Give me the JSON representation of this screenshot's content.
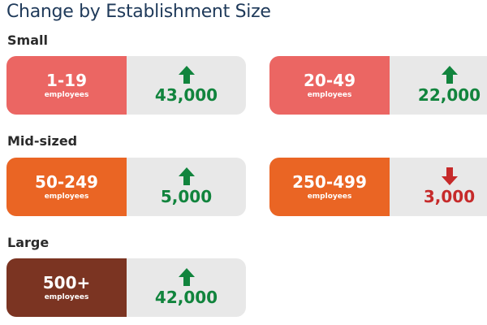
{
  "title": "Change by Establishment Size",
  "unit_label": "employees",
  "colors": {
    "small": "#eb6663",
    "mid": "#ea6524",
    "large": "#7b3422",
    "panel": "#e8e8e8",
    "up": "#11843d",
    "down": "#c62a2a"
  },
  "sections": {
    "small": "Small",
    "mid": "Mid-sized",
    "large": "Large"
  },
  "cards": [
    {
      "range": "1-19",
      "unit": "employees",
      "change": "43,000",
      "direction": "up",
      "icon": "arrow-up-icon"
    },
    {
      "range": "20-49",
      "unit": "employees",
      "change": "22,000",
      "direction": "up",
      "icon": "arrow-up-icon"
    },
    {
      "range": "50-249",
      "unit": "employees",
      "change": "5,000",
      "direction": "up",
      "icon": "arrow-up-icon"
    },
    {
      "range": "250-499",
      "unit": "employees",
      "change": "3,000",
      "direction": "down",
      "icon": "arrow-down-icon"
    },
    {
      "range": "500+",
      "unit": "employees",
      "change": "42,000",
      "direction": "up",
      "icon": "arrow-up-icon"
    }
  ]
}
